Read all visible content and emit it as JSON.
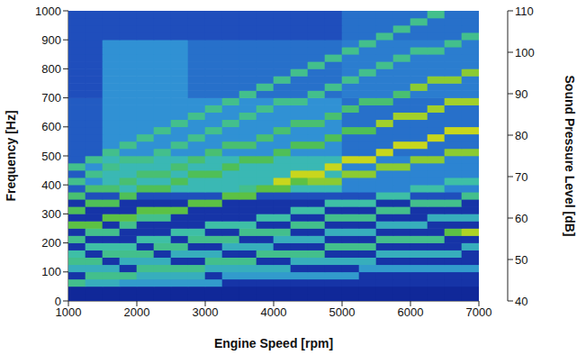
{
  "chart_data": {
    "type": "heatmap",
    "x_label": "Engine Speed [rpm]",
    "y_label": "Frequency [Hz]",
    "xlim": [
      1000,
      7000
    ],
    "xticks": [
      1000,
      2000,
      3000,
      4000,
      5000,
      6000,
      7000
    ],
    "ylim": [
      0,
      1000
    ],
    "yticks": [
      0,
      100,
      200,
      300,
      400,
      500,
      600,
      700,
      800,
      900,
      1000
    ],
    "cells": {
      "x_bins": [
        1000,
        1250,
        1500,
        1750,
        2000,
        2250,
        2500,
        2750,
        3000,
        3250,
        3500,
        3750,
        4000,
        4250,
        4500,
        4750,
        5000,
        5250,
        5500,
        5750,
        6000,
        6250,
        6500,
        6750,
        7000
      ],
      "y_bins": [
        0,
        25,
        50,
        75,
        100,
        125,
        150,
        175,
        200,
        225,
        250,
        275,
        300,
        325,
        350,
        375,
        400,
        425,
        450,
        475,
        500,
        525,
        550,
        575,
        600,
        625,
        650,
        675,
        700,
        725,
        750,
        775,
        800,
        825,
        850,
        875,
        900,
        925,
        950,
        975,
        1000
      ],
      "values": [
        [
          42,
          42,
          42,
          42,
          42,
          42,
          42,
          42,
          42,
          42,
          42,
          42,
          42,
          42,
          42,
          42,
          42,
          42,
          42,
          42,
          42,
          42,
          42,
          42
        ],
        [
          42,
          42,
          42,
          42,
          42,
          42,
          42,
          42,
          42,
          42,
          42,
          42,
          42,
          42,
          42,
          42,
          42,
          42,
          42,
          42,
          42,
          42,
          42,
          42
        ],
        [
          72,
          66,
          66,
          62,
          62,
          62,
          62,
          62,
          62,
          45,
          45,
          45,
          45,
          45,
          45,
          45,
          45,
          45,
          45,
          45,
          45,
          45,
          45,
          45
        ],
        [
          45,
          72,
          72,
          72,
          66,
          66,
          66,
          66,
          45,
          62,
          62,
          62,
          62,
          62,
          62,
          62,
          62,
          45,
          45,
          45,
          45,
          45,
          45,
          45
        ],
        [
          66,
          66,
          66,
          45,
          72,
          72,
          72,
          72,
          66,
          66,
          66,
          66,
          66,
          45,
          45,
          45,
          45,
          62,
          62,
          62,
          62,
          62,
          62,
          62
        ],
        [
          72,
          72,
          45,
          66,
          66,
          66,
          45,
          45,
          72,
          72,
          72,
          45,
          45,
          66,
          66,
          66,
          66,
          66,
          45,
          45,
          45,
          45,
          45,
          45
        ],
        [
          70,
          45,
          72,
          72,
          72,
          45,
          66,
          66,
          66,
          45,
          45,
          72,
          72,
          72,
          72,
          45,
          45,
          45,
          66,
          66,
          66,
          66,
          66,
          45
        ],
        [
          45,
          70,
          70,
          70,
          45,
          72,
          72,
          45,
          45,
          66,
          66,
          66,
          45,
          45,
          45,
          72,
          72,
          72,
          45,
          45,
          45,
          45,
          45,
          66
        ],
        [
          72,
          45,
          45,
          45,
          70,
          70,
          45,
          72,
          72,
          72,
          45,
          45,
          66,
          66,
          66,
          45,
          45,
          45,
          72,
          72,
          72,
          72,
          45,
          45
        ],
        [
          45,
          72,
          72,
          45,
          45,
          45,
          70,
          70,
          45,
          45,
          72,
          72,
          72,
          45,
          45,
          66,
          66,
          66,
          45,
          45,
          45,
          45,
          78,
          85
        ],
        [
          78,
          78,
          45,
          72,
          45,
          45,
          45,
          45,
          70,
          70,
          70,
          45,
          45,
          72,
          72,
          45,
          45,
          45,
          66,
          66,
          66,
          45,
          45,
          45
        ],
        [
          45,
          45,
          78,
          78,
          72,
          72,
          45,
          45,
          45,
          45,
          45,
          70,
          70,
          45,
          45,
          72,
          72,
          72,
          45,
          45,
          45,
          66,
          66,
          66
        ],
        [
          76,
          45,
          45,
          45,
          78,
          78,
          78,
          45,
          45,
          45,
          45,
          45,
          45,
          70,
          70,
          45,
          45,
          45,
          72,
          72,
          45,
          45,
          45,
          45
        ],
        [
          45,
          76,
          76,
          45,
          45,
          45,
          45,
          78,
          78,
          45,
          45,
          45,
          45,
          45,
          45,
          70,
          70,
          70,
          45,
          45,
          72,
          72,
          72,
          45
        ],
        [
          74,
          50,
          50,
          76,
          50,
          50,
          50,
          50,
          50,
          78,
          78,
          50,
          50,
          50,
          50,
          50,
          50,
          50,
          70,
          70,
          50,
          50,
          50,
          72
        ],
        [
          52,
          74,
          74,
          68,
          76,
          76,
          68,
          68,
          68,
          68,
          72,
          78,
          78,
          68,
          68,
          68,
          58,
          58,
          58,
          58,
          70,
          70,
          58,
          58
        ],
        [
          72,
          60,
          68,
          74,
          68,
          68,
          76,
          68,
          68,
          68,
          68,
          68,
          88,
          78,
          82,
          82,
          58,
          58,
          58,
          58,
          58,
          58,
          70,
          70
        ],
        [
          52,
          72,
          68,
          68,
          74,
          74,
          68,
          76,
          76,
          68,
          68,
          68,
          68,
          88,
          88,
          68,
          82,
          82,
          58,
          58,
          58,
          58,
          58,
          58
        ],
        [
          72,
          60,
          72,
          68,
          68,
          68,
          74,
          68,
          68,
          76,
          68,
          68,
          68,
          68,
          68,
          88,
          58,
          58,
          82,
          82,
          58,
          58,
          58,
          58
        ],
        [
          52,
          72,
          68,
          72,
          72,
          68,
          68,
          74,
          68,
          68,
          76,
          76,
          68,
          68,
          68,
          68,
          88,
          88,
          58,
          58,
          82,
          82,
          58,
          58
        ],
        [
          52,
          52,
          72,
          60,
          60,
          72,
          60,
          60,
          74,
          60,
          60,
          60,
          76,
          60,
          60,
          60,
          55,
          55,
          88,
          55,
          55,
          55,
          82,
          82
        ],
        [
          52,
          52,
          60,
          72,
          60,
          60,
          72,
          60,
          60,
          74,
          74,
          60,
          60,
          76,
          76,
          60,
          55,
          55,
          55,
          88,
          88,
          55,
          55,
          55
        ],
        [
          52,
          52,
          60,
          60,
          72,
          60,
          60,
          72,
          60,
          60,
          60,
          74,
          60,
          60,
          60,
          76,
          55,
          55,
          55,
          55,
          55,
          88,
          55,
          55
        ],
        [
          52,
          52,
          60,
          60,
          60,
          72,
          60,
          60,
          72,
          60,
          60,
          60,
          74,
          60,
          60,
          60,
          76,
          76,
          55,
          55,
          55,
          55,
          88,
          88
        ],
        [
          52,
          52,
          60,
          60,
          60,
          60,
          72,
          60,
          60,
          72,
          60,
          60,
          60,
          74,
          74,
          60,
          55,
          55,
          84,
          55,
          55,
          55,
          55,
          55
        ],
        [
          52,
          52,
          60,
          60,
          60,
          60,
          60,
          72,
          60,
          60,
          72,
          60,
          60,
          60,
          60,
          74,
          55,
          55,
          55,
          84,
          84,
          55,
          55,
          55
        ],
        [
          52,
          52,
          60,
          60,
          60,
          60,
          60,
          60,
          72,
          60,
          60,
          72,
          60,
          60,
          60,
          60,
          74,
          55,
          55,
          55,
          55,
          84,
          55,
          55
        ],
        [
          52,
          52,
          60,
          60,
          60,
          60,
          60,
          60,
          60,
          72,
          60,
          60,
          72,
          72,
          60,
          60,
          55,
          74,
          74,
          55,
          55,
          55,
          84,
          84
        ],
        [
          50,
          50,
          60,
          60,
          60,
          60,
          60,
          55,
          55,
          55,
          72,
          55,
          55,
          55,
          72,
          55,
          57,
          57,
          57,
          74,
          57,
          57,
          57,
          57
        ],
        [
          50,
          50,
          60,
          60,
          60,
          60,
          60,
          55,
          55,
          55,
          55,
          72,
          55,
          55,
          55,
          72,
          57,
          57,
          57,
          57,
          82,
          57,
          57,
          57
        ],
        [
          50,
          50,
          60,
          60,
          60,
          60,
          60,
          55,
          55,
          55,
          55,
          55,
          72,
          55,
          55,
          55,
          72,
          57,
          57,
          57,
          57,
          82,
          82,
          57
        ],
        [
          50,
          50,
          60,
          60,
          60,
          60,
          60,
          55,
          55,
          55,
          55,
          55,
          55,
          72,
          55,
          55,
          57,
          72,
          57,
          57,
          57,
          57,
          57,
          82
        ],
        [
          50,
          50,
          60,
          60,
          60,
          60,
          60,
          55,
          55,
          55,
          55,
          55,
          55,
          55,
          72,
          55,
          57,
          57,
          72,
          57,
          57,
          57,
          57,
          57
        ],
        [
          50,
          50,
          60,
          60,
          60,
          60,
          60,
          55,
          55,
          55,
          55,
          55,
          55,
          55,
          55,
          72,
          57,
          57,
          57,
          72,
          57,
          57,
          57,
          57
        ],
        [
          50,
          50,
          60,
          60,
          60,
          60,
          60,
          55,
          55,
          55,
          55,
          55,
          55,
          55,
          55,
          55,
          72,
          57,
          57,
          57,
          72,
          72,
          57,
          57
        ],
        [
          50,
          50,
          60,
          60,
          60,
          60,
          60,
          55,
          55,
          55,
          55,
          55,
          55,
          55,
          55,
          55,
          57,
          72,
          57,
          57,
          57,
          57,
          72,
          57
        ],
        [
          50,
          50,
          50,
          50,
          50,
          50,
          50,
          50,
          50,
          50,
          50,
          50,
          50,
          50,
          50,
          50,
          55,
          55,
          72,
          55,
          55,
          55,
          55,
          72
        ],
        [
          50,
          50,
          50,
          50,
          50,
          50,
          50,
          50,
          50,
          50,
          50,
          50,
          50,
          50,
          50,
          50,
          55,
          55,
          55,
          72,
          55,
          55,
          55,
          55
        ],
        [
          50,
          50,
          50,
          50,
          50,
          50,
          50,
          50,
          50,
          50,
          50,
          50,
          50,
          50,
          50,
          50,
          55,
          55,
          55,
          55,
          72,
          55,
          55,
          55
        ],
        [
          50,
          50,
          50,
          50,
          50,
          50,
          50,
          50,
          50,
          50,
          50,
          50,
          50,
          50,
          50,
          50,
          55,
          55,
          55,
          55,
          55,
          72,
          55,
          55
        ]
      ]
    },
    "colorbar": {
      "label": "Sound Pressure Level [dB]",
      "range": [
        40,
        110
      ],
      "ticks": [
        40,
        50,
        60,
        70,
        80,
        90,
        100,
        110
      ]
    }
  }
}
